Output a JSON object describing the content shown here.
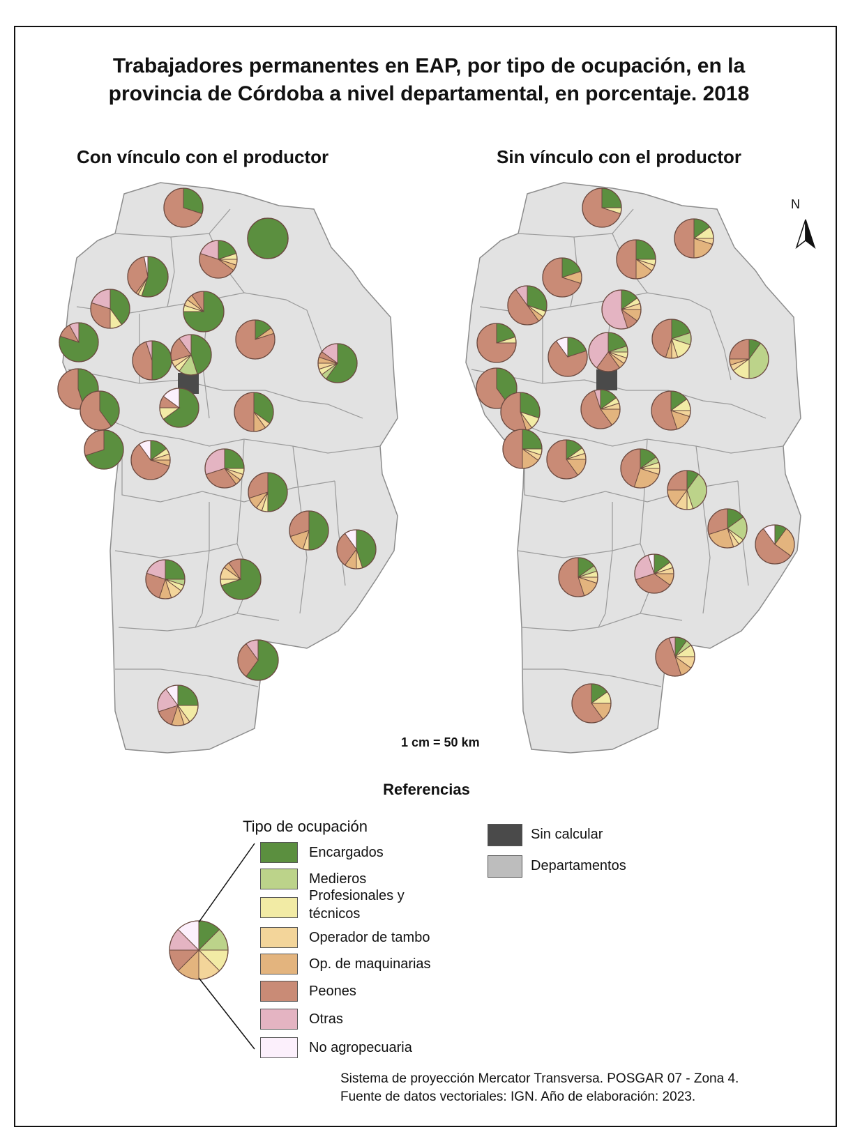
{
  "title": {
    "line1": "Trabajadores permanentes en EAP, por tipo de ocupación, en la",
    "line2": "provincia de Córdoba a nivel departamental, en porcentaje. 2018"
  },
  "maps": {
    "left_title": "Con vínculo con el productor",
    "right_title": "Sin vínculo con el productor"
  },
  "north_label": "N",
  "scale_text": "1 cm = 50 km",
  "references_title": "Referencias",
  "legend": {
    "title": "Tipo de ocupación",
    "items": [
      {
        "label": "Encargados",
        "color": "#5b8f3f"
      },
      {
        "label": "Medieros",
        "color": "#bcd38a"
      },
      {
        "label_line1": "Profesionales y",
        "label_line2": "técnicos",
        "color": "#f2eba5"
      },
      {
        "label": "Operador de tambo",
        "color": "#f3d59a"
      },
      {
        "label": "Op. de maquinarias",
        "color": "#e3b47e"
      },
      {
        "label": "Peones",
        "color": "#c98b76"
      },
      {
        "label": "Otras",
        "color": "#e4b4c2"
      },
      {
        "label": "No agropecuaria",
        "color": "#fcf0fc"
      }
    ],
    "sin_calcular": {
      "label": "Sin calcular",
      "color": "#4a4a4a"
    },
    "departamentos": {
      "label": "Departamentos",
      "color": "#bdbdbd"
    }
  },
  "footer": {
    "line1": "Sistema de proyección Mercator Transversa. POSGAR 07 - Zona 4.",
    "line2": "Fuente de datos vectoriales: IGN. Año de elaboración: 2023."
  },
  "colors": {
    "province_fill": "#e2e2e2",
    "department_border": "#8c8c8c"
  }
}
